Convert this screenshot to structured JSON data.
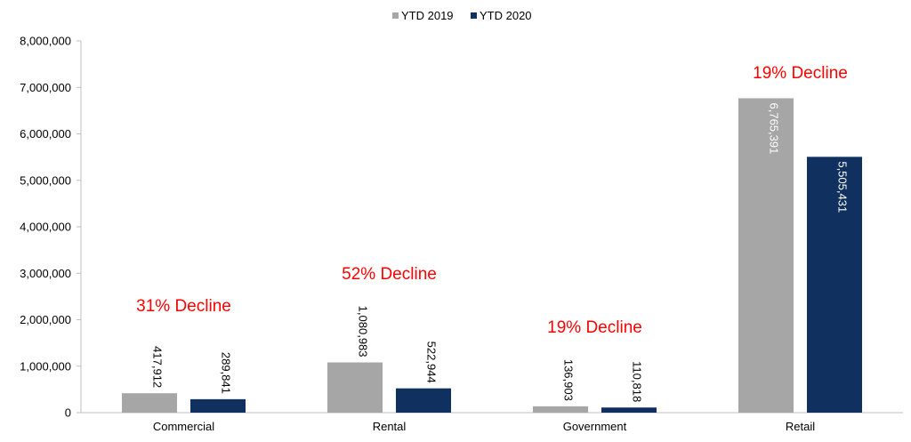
{
  "chart_data": {
    "type": "bar",
    "categories": [
      "Commercial",
      "Rental",
      "Government",
      "Retail"
    ],
    "series": [
      {
        "name": "YTD 2019",
        "values": [
          417912,
          1080983,
          136903,
          6765391
        ],
        "color": "#a6a6a6",
        "label_color": "#000000"
      },
      {
        "name": "YTD 2020",
        "values": [
          289841,
          522944,
          110818,
          5505431
        ],
        "color": "#10305f",
        "label_color": "#000000"
      }
    ],
    "data_labels": [
      [
        "417,912",
        "1,080,983",
        "136,903",
        "6,765,391"
      ],
      [
        "289,841",
        "522,944",
        "110,818",
        "5,505,431"
      ]
    ],
    "inside_label_color": "#ffffff",
    "annotations": [
      "31% Decline",
      "52% Decline",
      "19% Decline",
      "19% Decline"
    ],
    "annotation_color": "#ff0000",
    "ylim": [
      0,
      8000000
    ],
    "yticks": [
      0,
      1000000,
      2000000,
      3000000,
      4000000,
      5000000,
      6000000,
      7000000,
      8000000
    ],
    "ytick_labels": [
      "0",
      "1,000,000",
      "2,000,000",
      "3,000,000",
      "4,000,000",
      "5,000,000",
      "6,000,000",
      "7,000,000",
      "8,000,000"
    ],
    "title": "",
    "xlabel": "",
    "ylabel": "",
    "legend_position": "top-center",
    "grid": false
  }
}
